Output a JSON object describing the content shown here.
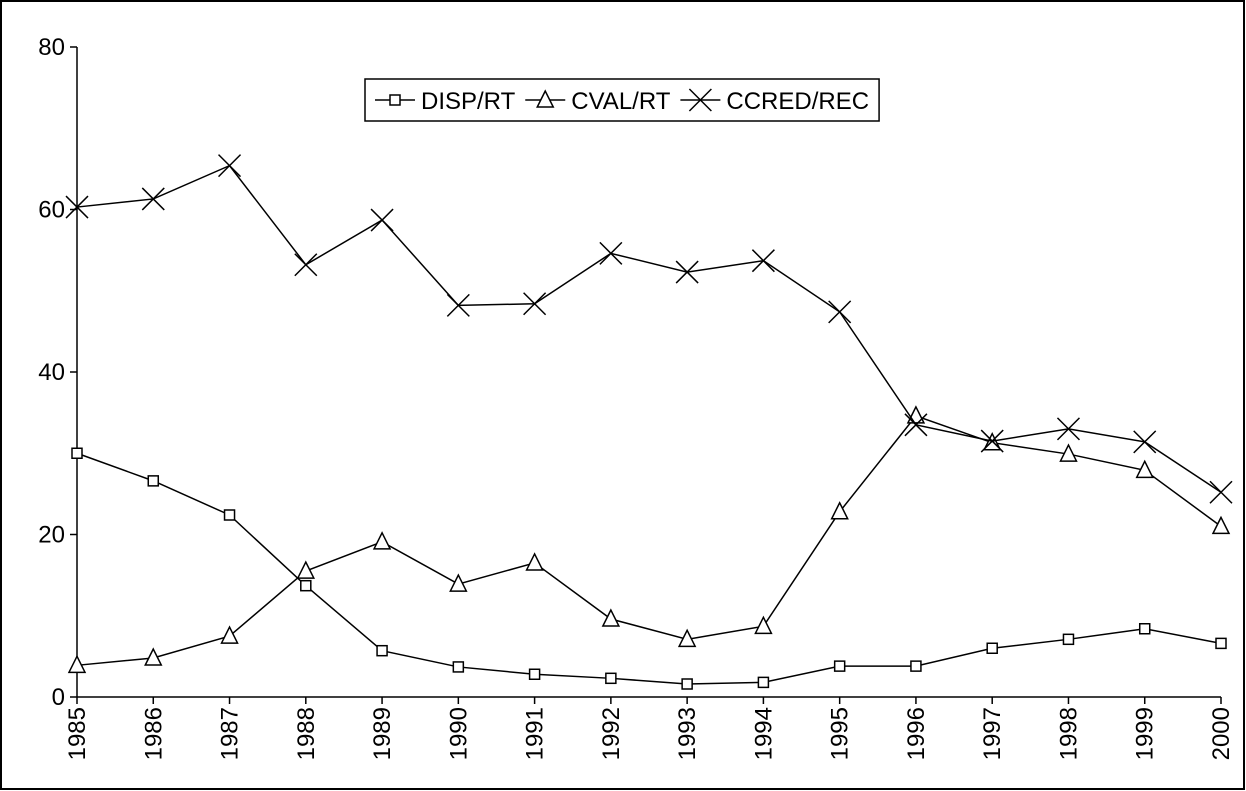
{
  "chart_data": {
    "type": "line",
    "categories": [
      "1985",
      "1986",
      "1987",
      "1988",
      "1989",
      "1990",
      "1991",
      "1992",
      "1993",
      "1994",
      "1995",
      "1996",
      "1997",
      "1998",
      "1999",
      "2000"
    ],
    "series": [
      {
        "name": "DISP/RT",
        "color": "#000000",
        "marker": "square",
        "values": [
          30.0,
          26.6,
          22.4,
          13.7,
          5.7,
          3.7,
          2.8,
          2.3,
          1.6,
          1.8,
          3.8,
          3.8,
          6.0,
          7.1,
          8.4,
          6.6
        ]
      },
      {
        "name": "CVAL/RT",
        "color": "#000000",
        "marker": "triangle",
        "values": [
          3.9,
          4.8,
          7.5,
          15.5,
          19.1,
          13.9,
          16.5,
          9.6,
          7.1,
          8.7,
          22.8,
          34.6,
          31.3,
          29.9,
          27.9,
          21.0
        ]
      },
      {
        "name": "CCRED/REC",
        "color": "#000000",
        "marker": "x",
        "values": [
          60.3,
          61.3,
          65.4,
          53.2,
          58.7,
          48.2,
          48.4,
          54.6,
          52.3,
          53.7,
          47.4,
          33.5,
          31.5,
          33.0,
          31.4,
          25.2
        ]
      }
    ],
    "ylim": [
      0,
      80
    ],
    "yticks": [
      0,
      20,
      40,
      60,
      80
    ],
    "legend": "top"
  }
}
